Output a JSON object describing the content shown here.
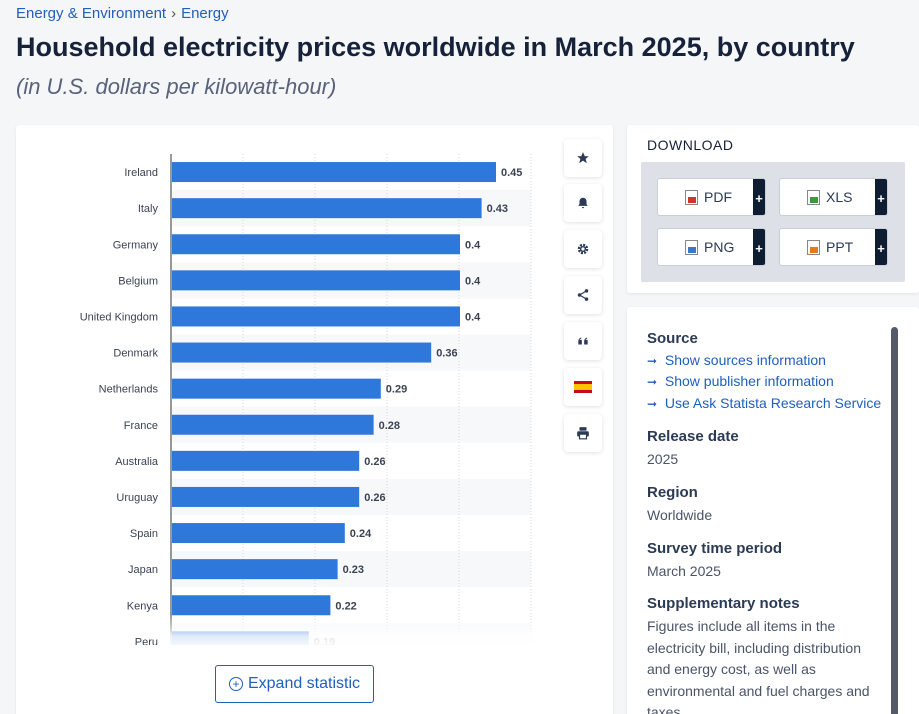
{
  "breadcrumb": {
    "parent": "Energy & Environment",
    "separator": "›",
    "current": "Energy"
  },
  "title": "Household electricity prices worldwide in March 2025, by country",
  "subtitle": "(in U.S. dollars per kilowatt-hour)",
  "expand_label": "Expand statistic",
  "colors": {
    "bar": "#2e78dc",
    "link": "#1f5fbd",
    "title": "#16213a"
  },
  "chart_data": {
    "type": "bar",
    "orientation": "horizontal",
    "title": "Household electricity prices worldwide in March 2025, by country",
    "xlabel": "U.S. dollars per kilowatt-hour",
    "ylabel": "",
    "xlim": [
      0,
      0.5
    ],
    "grid": true,
    "categories": [
      "Ireland",
      "Italy",
      "Germany",
      "Belgium",
      "United Kingdom",
      "Denmark",
      "Netherlands",
      "France",
      "Australia",
      "Uruguay",
      "Spain",
      "Japan",
      "Kenya",
      "Peru"
    ],
    "values": [
      0.45,
      0.43,
      0.4,
      0.4,
      0.4,
      0.36,
      0.29,
      0.28,
      0.26,
      0.26,
      0.24,
      0.23,
      0.22,
      0.19
    ],
    "labels": [
      "0.45",
      "0.43",
      "0.4",
      "0.4",
      "0.4",
      "0.36",
      "0.29",
      "0.28",
      "0.26",
      "0.26",
      "0.24",
      "0.23",
      "0.22",
      "0.19"
    ]
  },
  "tools": [
    {
      "name": "favorite-star-icon",
      "glyph": "★"
    },
    {
      "name": "notification-bell-icon",
      "glyph": "🔔"
    },
    {
      "name": "settings-gear-icon",
      "glyph": "⚙"
    },
    {
      "name": "share-icon",
      "glyph": "share"
    },
    {
      "name": "cite-quote-icon",
      "glyph": "❝"
    },
    {
      "name": "language-flag-icon",
      "glyph": "flag-es"
    },
    {
      "name": "print-icon",
      "glyph": "print"
    }
  ],
  "download": {
    "title": "DOWNLOAD",
    "buttons": [
      {
        "label": "PDF",
        "plus": "+",
        "color": "#d0342c"
      },
      {
        "label": "XLS",
        "plus": "+",
        "color": "#3c9a3c"
      },
      {
        "label": "PNG",
        "plus": "+",
        "color": "#3a78c9"
      },
      {
        "label": "PPT",
        "plus": "+",
        "color": "#e57a1d"
      }
    ]
  },
  "info": {
    "source_heading": "Source",
    "source_links": [
      "Show sources information",
      "Show publisher information",
      "Use Ask Statista Research Service"
    ],
    "release_heading": "Release date",
    "release_value": "2025",
    "region_heading": "Region",
    "region_value": "Worldwide",
    "survey_heading": "Survey time period",
    "survey_value": "March 2025",
    "notes_heading": "Supplementary notes",
    "notes_value": "Figures include all items in the electricity bill, including distribution and energy cost, as well as environmental and fuel charges and taxes."
  }
}
